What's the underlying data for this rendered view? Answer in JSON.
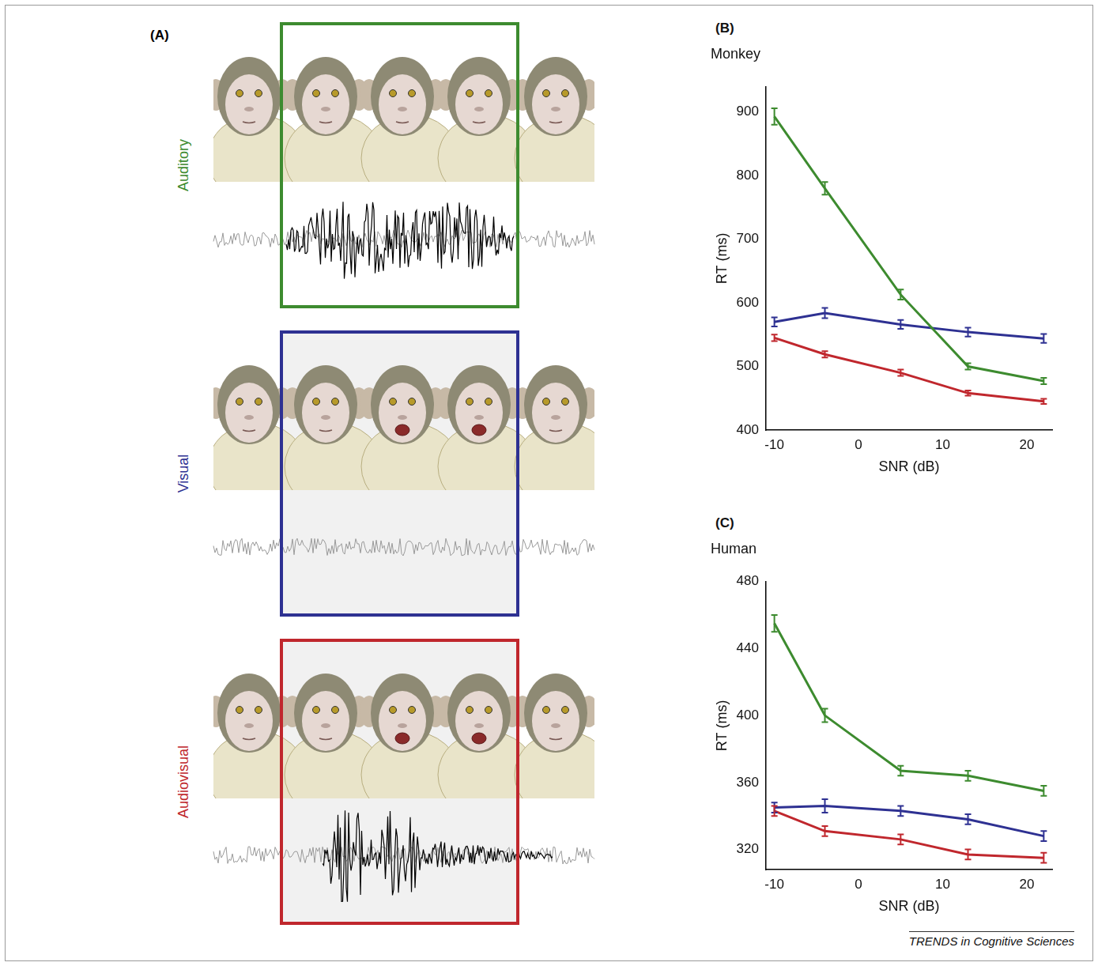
{
  "figure": {
    "panels": [
      "(A)",
      "(B)",
      "(C)"
    ],
    "conditions": [
      {
        "name": "Auditory",
        "color": "#3d8b2f"
      },
      {
        "name": "Visual",
        "color": "#2e3192"
      },
      {
        "name": "Audiovisual",
        "color": "#c0272d"
      }
    ],
    "credit": "TRENDS in Cognitive Sciences"
  },
  "chart_data": [
    {
      "type": "line",
      "title": "Monkey",
      "x_label": "SNR (dB)",
      "y_label": "RT (ms)",
      "x": [
        -10,
        -4,
        5,
        13,
        22
      ],
      "xlim": [
        -11,
        23
      ],
      "xticks": [
        -10,
        0,
        10,
        20
      ],
      "ylim": [
        400,
        940
      ],
      "yticks": [
        400,
        500,
        600,
        700,
        800,
        900
      ],
      "grid": false,
      "series": [
        {
          "name": "Auditory",
          "color": "#3d8b2f",
          "values": [
            893,
            780,
            613,
            500,
            477
          ],
          "errors": [
            13,
            10,
            8,
            5,
            5
          ]
        },
        {
          "name": "Visual",
          "color": "#2e3192",
          "values": [
            570,
            584,
            566,
            554,
            544
          ],
          "errors": [
            7,
            8,
            7,
            7,
            7
          ]
        },
        {
          "name": "Audiovisual",
          "color": "#c0272d",
          "values": [
            545,
            519,
            490,
            458,
            445
          ],
          "errors": [
            5,
            5,
            5,
            4,
            4
          ]
        }
      ]
    },
    {
      "type": "line",
      "title": "Human",
      "x_label": "SNR (dB)",
      "y_label": "RT (ms)",
      "x": [
        -10,
        -4,
        5,
        13,
        22
      ],
      "xlim": [
        -11,
        23
      ],
      "xticks": [
        -10,
        0,
        10,
        20
      ],
      "ylim": [
        308,
        480
      ],
      "yticks": [
        320,
        360,
        400,
        440,
        480
      ],
      "grid": false,
      "series": [
        {
          "name": "Auditory",
          "color": "#3d8b2f",
          "values": [
            455,
            400,
            367,
            364,
            355
          ],
          "errors": [
            5,
            4,
            3,
            3,
            3
          ]
        },
        {
          "name": "Visual",
          "color": "#2e3192",
          "values": [
            345,
            346,
            343,
            338,
            328
          ],
          "errors": [
            3,
            4,
            3,
            3,
            3
          ]
        },
        {
          "name": "Audiovisual",
          "color": "#c0272d",
          "values": [
            343,
            331,
            326,
            317,
            315
          ],
          "errors": [
            3,
            3,
            3,
            3,
            3
          ]
        }
      ]
    }
  ]
}
